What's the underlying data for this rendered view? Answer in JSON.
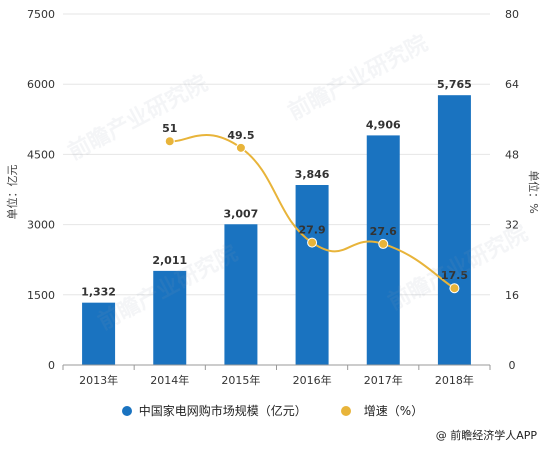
{
  "chart_data": {
    "type": "bar",
    "categories": [
      "2013年",
      "2014年",
      "2015年",
      "2016年",
      "2017年",
      "2018年"
    ],
    "series": [
      {
        "name": "中国家电网购市场规模（亿元）",
        "type": "bar",
        "axis": "left",
        "color": "#1a73c0",
        "values": [
          1332,
          2011,
          3007,
          3846,
          4906,
          5765
        ],
        "labels": [
          "1,332",
          "2,011",
          "3,007",
          "3,846",
          "4,906",
          "5,765"
        ]
      },
      {
        "name": "增速（%）",
        "type": "line",
        "axis": "right",
        "color": "#e8b43a",
        "values": [
          null,
          51,
          49.5,
          27.9,
          27.6,
          17.5
        ],
        "labels": [
          "",
          "51",
          "49.5",
          "27.9",
          "27.6",
          "17.5"
        ]
      }
    ],
    "ylabel": "单位：亿元",
    "y2label": "单位：%",
    "ylim": [
      0,
      7500
    ],
    "y2lim": [
      0,
      80
    ],
    "yticks": [
      "0",
      "1500",
      "3000",
      "4500",
      "6000",
      "7500"
    ],
    "y2ticks": [
      "0",
      "16",
      "32",
      "48",
      "64",
      "80"
    ],
    "grid": true,
    "legend_position": "bottom"
  },
  "legend": {
    "bar_label": "中国家电网购市场规模（亿元）",
    "line_label": "增速（%）"
  },
  "source": "@ 前瞻经济学人APP",
  "watermark": "前瞻产业研究院"
}
